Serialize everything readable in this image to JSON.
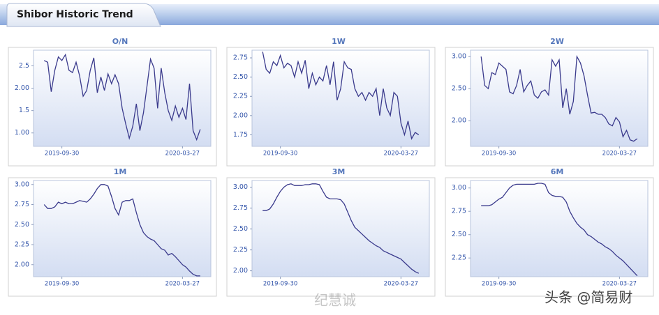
{
  "header": {
    "title": "Shibor Historic Trend"
  },
  "watermarks": [
    "纪慧诚",
    "头条 @简易财"
  ],
  "chart_data": [
    {
      "type": "line",
      "title": "O/N",
      "color": "#3a3a8c",
      "grid": false,
      "values": [
        2.62,
        2.58,
        1.92,
        2.4,
        2.7,
        2.62,
        2.75,
        2.4,
        2.35,
        2.58,
        2.28,
        1.82,
        1.95,
        2.4,
        2.68,
        1.9,
        2.25,
        1.95,
        2.32,
        2.1,
        2.3,
        2.1,
        1.55,
        1.2,
        0.88,
        1.15,
        1.65,
        1.05,
        1.45,
        2.05,
        2.65,
        2.45,
        1.55,
        2.45,
        1.9,
        1.5,
        1.28,
        1.6,
        1.35,
        1.55,
        1.3,
        2.1,
        1.05,
        0.85,
        1.08
      ],
      "xlim": [
        -3,
        47
      ],
      "xticks": [
        {
          "value": 5,
          "label": "2019-09-30"
        },
        {
          "value": 39,
          "label": "2020-03-27"
        }
      ],
      "ylim": [
        0.7,
        2.85
      ],
      "yticks": [
        {
          "value": 1,
          "label": "1.00"
        },
        1.5,
        {
          "value": 2,
          "label": "2.00"
        },
        2.5
      ]
    },
    {
      "type": "line",
      "title": "1W",
      "color": "#3a3a8c",
      "grid": false,
      "values": [
        2.83,
        2.6,
        2.55,
        2.7,
        2.65,
        2.78,
        2.62,
        2.68,
        2.65,
        2.5,
        2.7,
        2.55,
        2.72,
        2.35,
        2.55,
        2.4,
        2.5,
        2.45,
        2.65,
        2.4,
        2.7,
        2.2,
        2.35,
        2.7,
        2.62,
        2.6,
        2.35,
        2.25,
        2.3,
        2.2,
        2.3,
        2.25,
        2.35,
        2.0,
        2.35,
        2.1,
        2.0,
        2.3,
        2.25,
        1.9,
        1.75,
        1.93,
        1.7,
        1.78,
        1.75
      ],
      "xlim": [
        -3,
        47
      ],
      "xticks": [
        {
          "value": 5,
          "label": "2019-09-30"
        },
        {
          "value": 39,
          "label": "2020-03-27"
        }
      ],
      "ylim": [
        1.6,
        2.85
      ],
      "yticks": [
        1.75,
        {
          "value": 2,
          "label": "2.00"
        },
        2.25,
        {
          "value": 2.5,
          "label": "2.50"
        },
        2.75
      ]
    },
    {
      "type": "line",
      "title": "2W",
      "color": "#3a3a8c",
      "grid": false,
      "values": [
        3.0,
        2.55,
        2.5,
        2.75,
        2.72,
        2.9,
        2.85,
        2.8,
        2.45,
        2.42,
        2.55,
        2.8,
        2.45,
        2.55,
        2.62,
        2.4,
        2.35,
        2.45,
        2.48,
        2.4,
        2.95,
        2.85,
        2.95,
        2.2,
        2.5,
        2.1,
        2.3,
        3.0,
        2.9,
        2.7,
        2.4,
        2.12,
        2.13,
        2.1,
        2.1,
        2.05,
        1.95,
        1.92,
        2.05,
        1.98,
        1.75,
        1.85,
        1.7,
        1.68,
        1.72
      ],
      "xlim": [
        -3,
        47
      ],
      "xticks": [
        {
          "value": 5,
          "label": "2019-09-30"
        },
        {
          "value": 39,
          "label": "2020-03-27"
        }
      ],
      "ylim": [
        1.6,
        3.1
      ],
      "yticks": [
        {
          "value": 2,
          "label": "2.00"
        },
        {
          "value": 2.5,
          "label": "2.50"
        },
        {
          "value": 3,
          "label": "3.00"
        }
      ]
    },
    {
      "type": "line",
      "title": "1M",
      "color": "#3a3a8c",
      "grid": false,
      "values": [
        2.75,
        2.7,
        2.7,
        2.72,
        2.78,
        2.76,
        2.78,
        2.76,
        2.76,
        2.78,
        2.8,
        2.79,
        2.78,
        2.82,
        2.88,
        2.95,
        3.0,
        3.0,
        2.98,
        2.85,
        2.7,
        2.62,
        2.78,
        2.8,
        2.8,
        2.82,
        2.65,
        2.5,
        2.4,
        2.35,
        2.32,
        2.3,
        2.25,
        2.2,
        2.18,
        2.12,
        2.14,
        2.1,
        2.05,
        2.0,
        1.97,
        1.92,
        1.88,
        1.86,
        1.86
      ],
      "xlim": [
        -3,
        47
      ],
      "xticks": [
        {
          "value": 5,
          "label": "2019-09-30"
        },
        {
          "value": 39,
          "label": "2020-03-27"
        }
      ],
      "ylim": [
        1.85,
        3.05
      ],
      "yticks": [
        {
          "value": 2,
          "label": "2.00"
        },
        2.25,
        {
          "value": 2.5,
          "label": "2.50"
        },
        2.75,
        {
          "value": 3,
          "label": "3.00"
        }
      ]
    },
    {
      "type": "line",
      "title": "3M",
      "color": "#3a3a8c",
      "grid": false,
      "values": [
        2.72,
        2.72,
        2.74,
        2.8,
        2.88,
        2.95,
        3.0,
        3.03,
        3.04,
        3.02,
        3.02,
        3.02,
        3.03,
        3.03,
        3.04,
        3.04,
        3.03,
        2.95,
        2.88,
        2.86,
        2.86,
        2.86,
        2.85,
        2.8,
        2.7,
        2.6,
        2.52,
        2.48,
        2.44,
        2.4,
        2.36,
        2.33,
        2.3,
        2.28,
        2.24,
        2.22,
        2.2,
        2.18,
        2.16,
        2.14,
        2.1,
        2.06,
        2.02,
        1.99,
        1.97
      ],
      "xlim": [
        -3,
        47
      ],
      "xticks": [
        {
          "value": 5,
          "label": "2019-09-30"
        },
        {
          "value": 39,
          "label": "2020-03-27"
        }
      ],
      "ylim": [
        1.93,
        3.08
      ],
      "yticks": [
        {
          "value": 2,
          "label": "2.00"
        },
        2.25,
        {
          "value": 2.5,
          "label": "2.50"
        },
        2.75,
        {
          "value": 3,
          "label": "3.00"
        }
      ]
    },
    {
      "type": "line",
      "title": "6M",
      "color": "#3a3a8c",
      "grid": false,
      "values": [
        2.81,
        2.81,
        2.81,
        2.82,
        2.85,
        2.88,
        2.9,
        2.95,
        3.0,
        3.03,
        3.04,
        3.04,
        3.04,
        3.04,
        3.04,
        3.04,
        3.05,
        3.05,
        3.04,
        2.95,
        2.92,
        2.91,
        2.91,
        2.9,
        2.85,
        2.75,
        2.68,
        2.62,
        2.58,
        2.55,
        2.5,
        2.48,
        2.45,
        2.42,
        2.4,
        2.37,
        2.35,
        2.32,
        2.28,
        2.25,
        2.22,
        2.18,
        2.14,
        2.1,
        2.06
      ],
      "xlim": [
        -3,
        47
      ],
      "xticks": [
        {
          "value": 5,
          "label": "2019-09-30"
        },
        {
          "value": 39,
          "label": "2020-03-27"
        }
      ],
      "ylim": [
        2.05,
        3.08
      ],
      "yticks": [
        2.25,
        {
          "value": 2.5,
          "label": "2.50"
        },
        2.75,
        {
          "value": 3,
          "label": "3.00"
        }
      ]
    }
  ]
}
